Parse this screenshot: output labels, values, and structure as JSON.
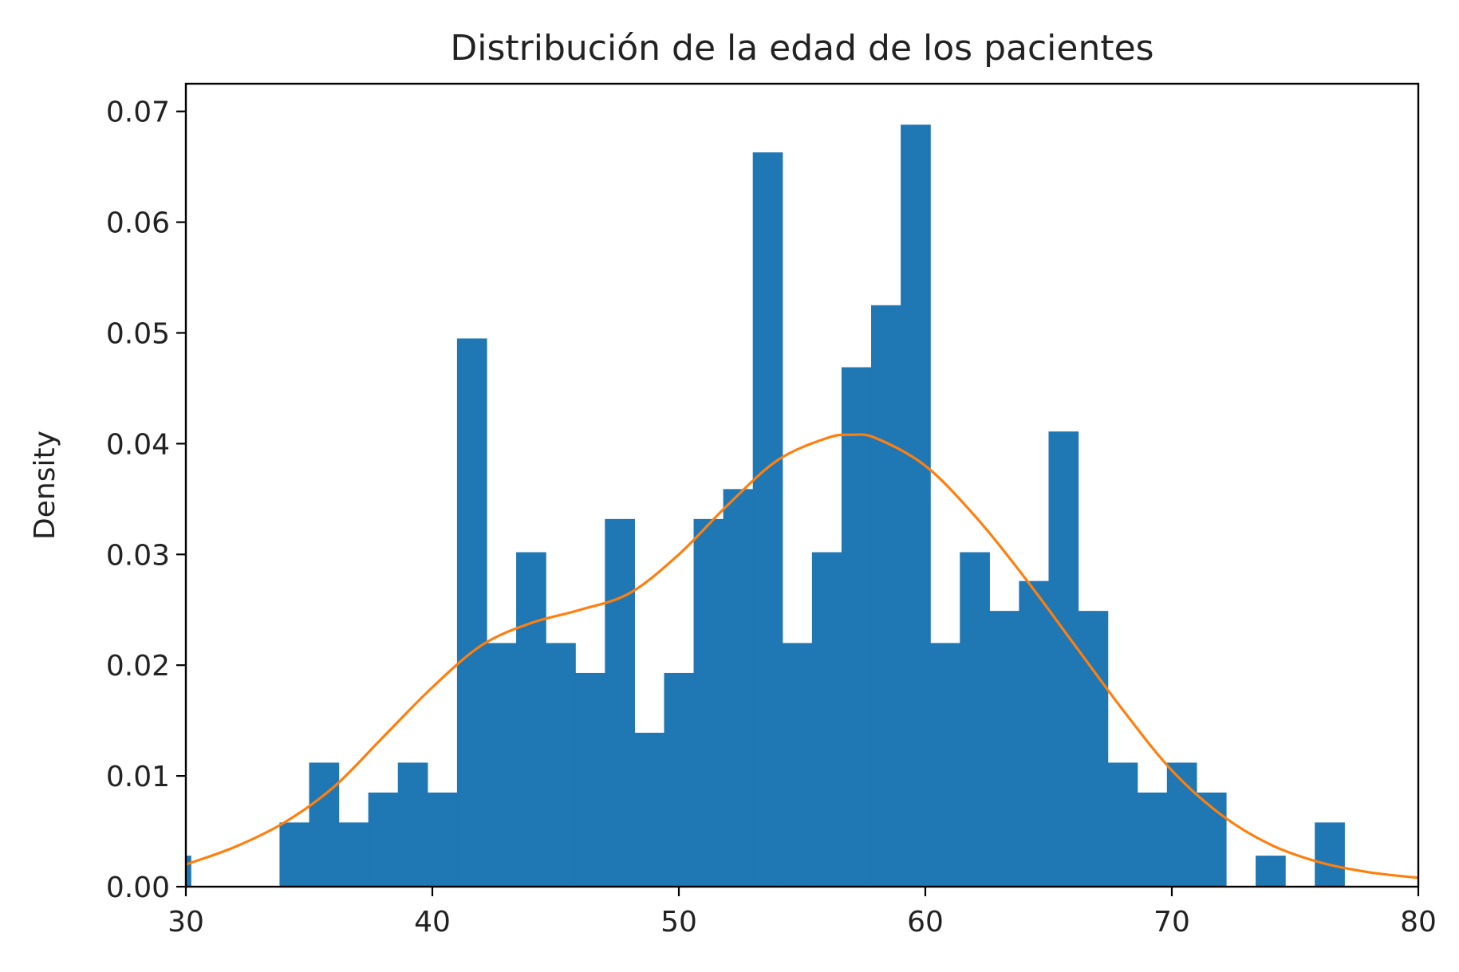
{
  "chart_data": {
    "type": "bar",
    "title": "Distribución de la edad de los pacientes",
    "xlabel": "",
    "ylabel": "Density",
    "xlim": [
      30,
      80
    ],
    "ylim": [
      0,
      0.0725
    ],
    "xticks": [
      30,
      40,
      50,
      60,
      70,
      80
    ],
    "xtick_labels": [
      "30",
      "40",
      "50",
      "60",
      "70",
      "80"
    ],
    "yticks": [
      0.0,
      0.01,
      0.02,
      0.03,
      0.04,
      0.05,
      0.06,
      0.07
    ],
    "ytick_labels": [
      "0.00",
      "0.01",
      "0.02",
      "0.03",
      "0.04",
      "0.05",
      "0.06",
      "0.07"
    ],
    "grid": false,
    "histogram": {
      "bin_start": 29,
      "bin_width": 1.2,
      "values": [
        0.0028,
        0,
        0,
        0,
        0.0058,
        0.0112,
        0.0058,
        0.0085,
        0.0112,
        0.0085,
        0.0495,
        0.022,
        0.0302,
        0.022,
        0.0193,
        0.0332,
        0.0139,
        0.0193,
        0.0332,
        0.0359,
        0.0663,
        0.022,
        0.0302,
        0.0469,
        0.0525,
        0.0688,
        0.022,
        0.0302,
        0.0249,
        0.0276,
        0.0411,
        0.0249,
        0.0112,
        0.0085,
        0.0112,
        0.0085,
        0,
        0.0028,
        0,
        0.0058
      ],
      "color": "#1f77b4"
    },
    "kde": {
      "x": [
        30,
        32,
        34,
        36,
        38,
        40,
        42,
        44,
        46,
        48,
        50,
        52,
        54,
        56,
        57,
        58,
        60,
        62,
        64,
        66,
        68,
        70,
        72,
        74,
        76,
        78,
        80
      ],
      "y": [
        0.002,
        0.0036,
        0.0058,
        0.009,
        0.0135,
        0.018,
        0.0218,
        0.0238,
        0.025,
        0.0265,
        0.03,
        0.0345,
        0.0385,
        0.0405,
        0.0408,
        0.0405,
        0.038,
        0.0335,
        0.028,
        0.022,
        0.016,
        0.0105,
        0.0065,
        0.0038,
        0.0022,
        0.0013,
        0.0008
      ],
      "color": "#ff7f0e"
    }
  }
}
